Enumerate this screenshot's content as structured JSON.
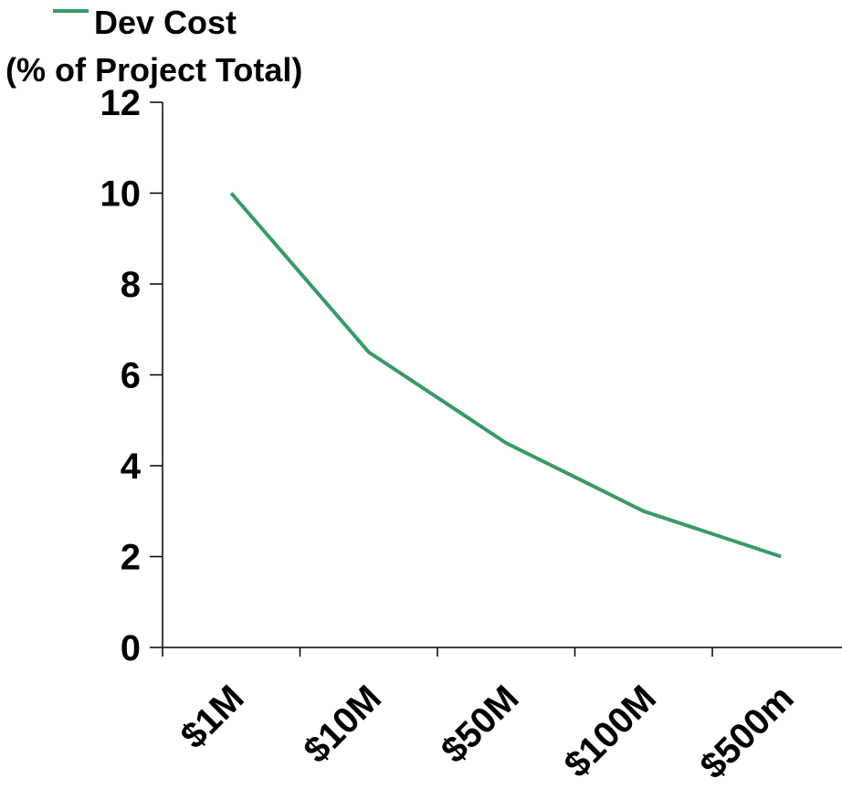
{
  "chart_data": {
    "type": "line",
    "categories": [
      "$1M",
      "$10M",
      "$50M",
      "$100M",
      "$500m"
    ],
    "series": [
      {
        "name": "Dev Cost",
        "values": [
          10,
          6.5,
          4.5,
          3,
          2
        ],
        "color": "#3a9966"
      }
    ],
    "ylabel": "(% of Project Total)",
    "xlabel": "",
    "ylim": [
      0,
      12
    ],
    "yticks": [
      0,
      2,
      4,
      6,
      8,
      10,
      12
    ],
    "grid": false,
    "legend": "top-left"
  }
}
